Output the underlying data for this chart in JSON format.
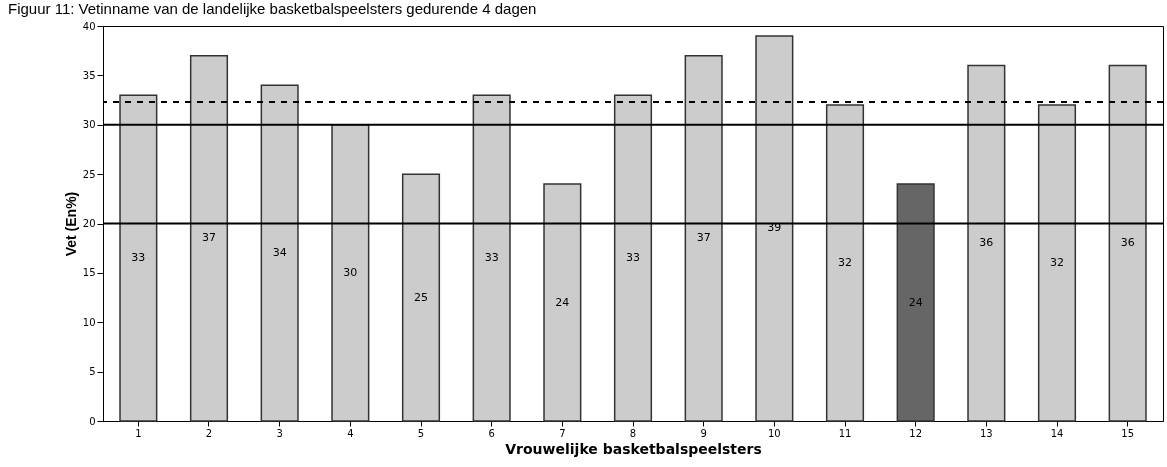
{
  "chart_data": {
    "type": "bar",
    "title": "Figuur 11: Vetinname van de landelijke basketbalspeelsters gedurende 4 dagen",
    "xlabel": "Vrouwelijke basketbalspeelsters",
    "ylabel": "Vet (En%)",
    "categories": [
      "1",
      "2",
      "3",
      "4",
      "5",
      "6",
      "7",
      "8",
      "9",
      "10",
      "11",
      "12",
      "13",
      "14",
      "15"
    ],
    "values": [
      33,
      37,
      34,
      30,
      25,
      33,
      24,
      33,
      37,
      39,
      32,
      24,
      36,
      32,
      36
    ],
    "colors": [
      "#cccccc",
      "#cccccc",
      "#cccccc",
      "#cccccc",
      "#cccccc",
      "#cccccc",
      "#cccccc",
      "#cccccc",
      "#cccccc",
      "#cccccc",
      "#cccccc",
      "#666666",
      "#cccccc",
      "#cccccc",
      "#cccccc"
    ],
    "ylim": [
      0,
      40
    ],
    "yticks": [
      0,
      5,
      10,
      15,
      20,
      25,
      30,
      35,
      40
    ],
    "grid": false,
    "data_labels": true,
    "ref_lines": [
      {
        "axis": "y",
        "value": 20,
        "line_style": "solid"
      },
      {
        "axis": "y",
        "value": 30,
        "line_style": "solid"
      },
      {
        "axis": "y",
        "value": 32.3,
        "line_style": "dashed"
      }
    ]
  }
}
